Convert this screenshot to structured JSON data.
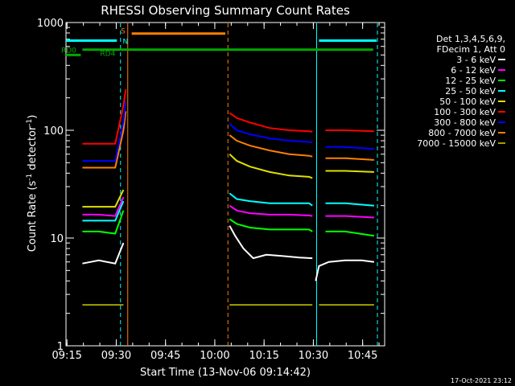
{
  "chart_data": {
    "type": "line",
    "title": "RHESSI Observing Summary Count Rates",
    "xlabel": "Start Time (13-Nov-06 09:14:42)",
    "ylabel_main": "Count Rate (s",
    "ylabel_sup": "-1",
    "ylabel_mid": " detector",
    "ylabel_sup2": "-1",
    "ylabel_end": ")",
    "yscale": "log",
    "ylim": [
      1,
      1000
    ],
    "xlim_minutes": [
      0,
      97
    ],
    "x_ticks": [
      {
        "label": "09:15",
        "minute": 0.3
      },
      {
        "label": "09:30",
        "minute": 15.3
      },
      {
        "label": "09:45",
        "minute": 30.3
      },
      {
        "label": "10:00",
        "minute": 45.3
      },
      {
        "label": "10:15",
        "minute": 60.3
      },
      {
        "label": "10:30",
        "minute": 75.3
      },
      {
        "label": "10:45",
        "minute": 90.3
      }
    ],
    "y_ticks": [
      {
        "label": "1",
        "value": 1
      },
      {
        "label": "10",
        "value": 10
      },
      {
        "label": "100",
        "value": 100
      },
      {
        "label": "1000",
        "value": 1000
      }
    ],
    "legend": {
      "placement": "right",
      "header": [
        "Det 1,3,4,5,6,9,",
        "FDecim 1, Att 0"
      ]
    },
    "series": [
      {
        "name": "3 - 6 keV",
        "color": "#ffffff",
        "segments": [
          {
            "x": [
              5,
              10,
              15,
              17.5
            ],
            "y": [
              5.8,
              6.2,
              5.8,
              9
            ]
          },
          {
            "x": [
              49.8,
              51.5,
              54,
              57,
              61,
              66,
              71,
              75
            ],
            "y": [
              13,
              10.5,
              8,
              6.5,
              7,
              6.8,
              6.6,
              6.5
            ]
          },
          {
            "x": [
              76,
              77,
              80,
              85,
              90,
              93.8
            ],
            "y": [
              4,
              5.5,
              6,
              6.2,
              6.2,
              6
            ]
          }
        ]
      },
      {
        "name": "6 - 12 keV",
        "color": "#ff00ff",
        "segments": [
          {
            "x": [
              5,
              10,
              15,
              17.5
            ],
            "y": [
              16.5,
              16.5,
              16,
              24
            ]
          },
          {
            "x": [
              49.8,
              52,
              56,
              62,
              68,
              74,
              75
            ],
            "y": [
              20,
              18,
              17,
              16.5,
              16.5,
              16.2,
              16
            ]
          },
          {
            "x": [
              79,
              85,
              93.8
            ],
            "y": [
              16,
              16,
              15.5
            ]
          }
        ]
      },
      {
        "name": "12 - 25 keV",
        "color": "#00ff00",
        "segments": [
          {
            "x": [
              5,
              10,
              15,
              17.5
            ],
            "y": [
              11.5,
              11.5,
              11,
              18
            ]
          },
          {
            "x": [
              49.8,
              52,
              56,
              62,
              68,
              74,
              75
            ],
            "y": [
              15,
              13.5,
              12.5,
              12,
              12,
              12,
              11.5
            ]
          },
          {
            "x": [
              79,
              85,
              93.8
            ],
            "y": [
              11.5,
              11.5,
              10.5
            ]
          }
        ]
      },
      {
        "name": "25 - 50 keV",
        "color": "#00ffff",
        "segments": [
          {
            "x": [
              5,
              10,
              15,
              17.5
            ],
            "y": [
              14.5,
              14.5,
              14.5,
              22
            ]
          },
          {
            "x": [
              49.8,
              52,
              56,
              62,
              68,
              74,
              75
            ],
            "y": [
              26,
              23,
              22,
              21,
              21,
              21,
              20
            ]
          },
          {
            "x": [
              79,
              85,
              93.8
            ],
            "y": [
              21,
              21,
              20
            ]
          }
        ]
      },
      {
        "name": "50 - 100 keV",
        "color": "#e0e000",
        "segments": [
          {
            "x": [
              5,
              10,
              15,
              17.5
            ],
            "y": [
              19.5,
              19.5,
              19.5,
              28
            ]
          },
          {
            "x": [
              49.8,
              52,
              56,
              62,
              68,
              74,
              75
            ],
            "y": [
              60,
              52,
              46,
              41,
              38,
              37,
              36
            ]
          },
          {
            "x": [
              79,
              85,
              93.8
            ],
            "y": [
              42,
              42,
              41
            ]
          }
        ]
      },
      {
        "name": "100 - 300 keV",
        "color": "#ff0000",
        "segments": [
          {
            "x": [
              5,
              10,
              15,
              17.5,
              18.2
            ],
            "y": [
              75,
              75,
              75,
              170,
              240
            ]
          },
          {
            "x": [
              49.8,
              52,
              56,
              62,
              68,
              74,
              75
            ],
            "y": [
              145,
              130,
              118,
              105,
              100,
              98,
              97
            ]
          },
          {
            "x": [
              79,
              85,
              93.8
            ],
            "y": [
              100,
              100,
              98
            ]
          }
        ]
      },
      {
        "name": "300 - 800 keV",
        "color": "#0000ff",
        "segments": [
          {
            "x": [
              5,
              10,
              15,
              17.5,
              18.2
            ],
            "y": [
              52,
              52,
              52,
              120,
              185
            ]
          },
          {
            "x": [
              49.8,
              52,
              56,
              62,
              68,
              74,
              75
            ],
            "y": [
              115,
              100,
              92,
              84,
              80,
              78,
              77
            ]
          },
          {
            "x": [
              79,
              85,
              93.8
            ],
            "y": [
              70,
              70,
              67
            ]
          }
        ]
      },
      {
        "name": "800 - 7000 keV",
        "color": "#ff8000",
        "segments": [
          {
            "x": [
              5,
              10,
              15,
              17.5,
              18.2
            ],
            "y": [
              45,
              45,
              45,
              100,
              150
            ]
          },
          {
            "x": [
              49.8,
              52,
              56,
              62,
              68,
              74,
              75
            ],
            "y": [
              90,
              80,
              72,
              65,
              60,
              58,
              57
            ]
          },
          {
            "x": [
              79,
              85,
              93.8
            ],
            "y": [
              55,
              55,
              53
            ]
          }
        ]
      },
      {
        "name": "7000 - 15000 keV",
        "color": "#a0a000",
        "segments": [
          {
            "x": [
              5,
              10,
              15,
              17.5
            ],
            "y": [
              2.4,
              2.4,
              2.4,
              2.4
            ]
          },
          {
            "x": [
              49.8,
              55,
              60,
              65,
              70,
              75
            ],
            "y": [
              2.4,
              2.4,
              2.4,
              2.4,
              2.4,
              2.4
            ]
          },
          {
            "x": [
              77,
              80,
              85,
              90,
              93.8
            ],
            "y": [
              2.4,
              2.4,
              2.4,
              2.4,
              2.4
            ]
          }
        ]
      }
    ],
    "flags": [
      {
        "label": "RD0",
        "color": "#00aa00",
        "value": 500,
        "x_start": 0,
        "x_end": 4.5
      },
      {
        "label": "RD4",
        "color": "#00aa00",
        "value": 560,
        "x_start": 5,
        "x_end": 93.5
      },
      {
        "label": "",
        "color": "#00ffff",
        "value": 680,
        "x_start": 0,
        "x_end": 15.5
      },
      {
        "label": "",
        "color": "#00ffff",
        "value": 680,
        "x_start": 77,
        "x_end": 94.5
      },
      {
        "label": "",
        "color": "#ff8000",
        "value": 790,
        "x_start": 20,
        "x_end": 48.5
      }
    ],
    "markers_top": [
      {
        "label": "S",
        "color": "#ff8000",
        "x": 17.4,
        "value": 850
      },
      {
        "label": "N",
        "color": "#00ffff",
        "x": 18.1,
        "value": 680
      }
    ],
    "vlines": [
      {
        "x": 16.6,
        "color": "#00ffff",
        "style": "dashed"
      },
      {
        "x": 18.8,
        "color": "#ff8000",
        "style": "solid"
      },
      {
        "x": 49.3,
        "color": "#ff8000",
        "style": "dashed"
      },
      {
        "x": 76.3,
        "color": "#00ffff",
        "style": "solid"
      },
      {
        "x": 94.8,
        "color": "#00ffff",
        "style": "dashed"
      }
    ],
    "grid": false
  },
  "footer": {
    "timestamp": "17-Oct-2021 23:12"
  }
}
